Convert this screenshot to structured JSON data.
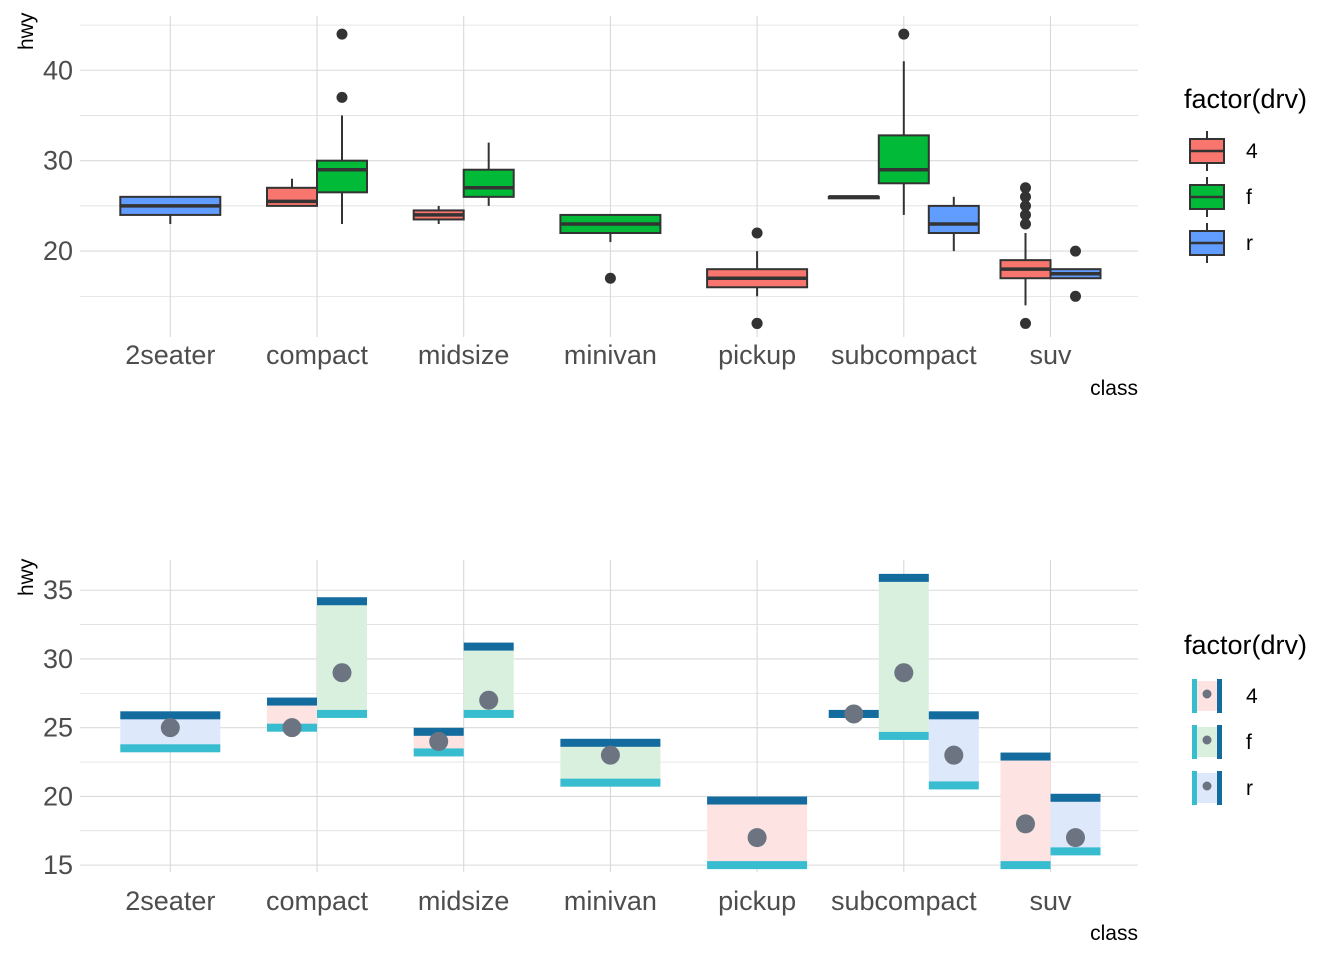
{
  "colors": {
    "4": "#F8766D",
    "f": "#00BA38",
    "r": "#619CFF",
    "outline": "#333333",
    "outlier": "#333333",
    "grid": "#d9d9d9",
    "bar_top": "#136B9E",
    "bar_bottom": "#37BCD0",
    "point": "#6B7480",
    "ribbon_4": "#FDE3E1",
    "ribbon_f": "#D8F0DD",
    "ribbon_r": "#DEE8FB"
  },
  "chart_data": [
    {
      "type": "boxplot",
      "title": "",
      "xlabel": "class",
      "ylabel": "hwy",
      "categories": [
        "2seater",
        "compact",
        "midsize",
        "minivan",
        "pickup",
        "subcompact",
        "suv"
      ],
      "ylim": [
        10.5,
        46
      ],
      "yticks": [
        20,
        30,
        40
      ],
      "ytick_labels": [
        "20",
        "30",
        "40"
      ],
      "legend": {
        "title": "factor(drv)",
        "entries": [
          "4",
          "f",
          "r"
        ],
        "position": "right"
      },
      "series": [
        {
          "category": "2seater",
          "drv": "r",
          "whisker_low": 23,
          "q1": 24,
          "median": 25,
          "q3": 26,
          "whisker_high": 26,
          "outliers": []
        },
        {
          "category": "compact",
          "drv": "4",
          "whisker_low": 25,
          "q1": 25,
          "median": 25.5,
          "q3": 27,
          "whisker_high": 28,
          "outliers": []
        },
        {
          "category": "compact",
          "drv": "f",
          "whisker_low": 23,
          "q1": 26.5,
          "median": 29,
          "q3": 30,
          "whisker_high": 35,
          "outliers": [
            37,
            44
          ]
        },
        {
          "category": "midsize",
          "drv": "4",
          "whisker_low": 23,
          "q1": 23.5,
          "median": 24,
          "q3": 24.5,
          "whisker_high": 25,
          "outliers": []
        },
        {
          "category": "midsize",
          "drv": "f",
          "whisker_low": 25,
          "q1": 26,
          "median": 27,
          "q3": 29,
          "whisker_high": 32,
          "outliers": []
        },
        {
          "category": "minivan",
          "drv": "f",
          "whisker_low": 21,
          "q1": 22,
          "median": 23,
          "q3": 24,
          "whisker_high": 24,
          "outliers": [
            17
          ]
        },
        {
          "category": "pickup",
          "drv": "4",
          "whisker_low": 15,
          "q1": 16,
          "median": 17,
          "q3": 18,
          "whisker_high": 20,
          "outliers": [
            12,
            12,
            22
          ]
        },
        {
          "category": "subcompact",
          "drv": "4",
          "whisker_low": 26,
          "q1": 26,
          "median": 26,
          "q3": 26,
          "whisker_high": 26,
          "outliers": []
        },
        {
          "category": "subcompact",
          "drv": "f",
          "whisker_low": 24,
          "q1": 27.5,
          "median": 29,
          "q3": 32.8,
          "whisker_high": 41,
          "outliers": [
            44
          ]
        },
        {
          "category": "subcompact",
          "drv": "r",
          "whisker_low": 20,
          "q1": 22,
          "median": 23,
          "q3": 25,
          "whisker_high": 26,
          "outliers": []
        },
        {
          "category": "suv",
          "drv": "4",
          "whisker_low": 14,
          "q1": 17,
          "median": 18,
          "q3": 19,
          "whisker_high": 22,
          "outliers": [
            12,
            23,
            24,
            25,
            26,
            27
          ]
        },
        {
          "category": "suv",
          "drv": "r",
          "whisker_low": 17,
          "q1": 17,
          "median": 17.5,
          "q3": 18,
          "whisker_high": 18,
          "outliers": [
            15,
            20
          ]
        }
      ]
    },
    {
      "type": "interval",
      "title": "",
      "xlabel": "class",
      "ylabel": "hwy",
      "categories": [
        "2seater",
        "compact",
        "midsize",
        "minivan",
        "pickup",
        "subcompact",
        "suv"
      ],
      "ylim": [
        14.5,
        37.2
      ],
      "yticks": [
        15,
        20,
        25,
        30,
        35
      ],
      "ytick_labels": [
        "15",
        "20",
        "25",
        "30",
        "35"
      ],
      "legend": {
        "title": "factor(drv)",
        "entries": [
          "4",
          "f",
          "r"
        ],
        "position": "right"
      },
      "series": [
        {
          "category": "2seater",
          "drv": "r",
          "low": 23.5,
          "high": 25.9,
          "point": 25
        },
        {
          "category": "compact",
          "drv": "4",
          "low": 25.0,
          "high": 26.9,
          "point": 25
        },
        {
          "category": "compact",
          "drv": "f",
          "low": 26.0,
          "high": 34.2,
          "point": 29
        },
        {
          "category": "midsize",
          "drv": "4",
          "low": 23.2,
          "high": 24.7,
          "point": 24
        },
        {
          "category": "midsize",
          "drv": "f",
          "low": 26.0,
          "high": 30.9,
          "point": 27
        },
        {
          "category": "minivan",
          "drv": "f",
          "low": 21.0,
          "high": 23.9,
          "point": 23
        },
        {
          "category": "pickup",
          "drv": "4",
          "low": 15.0,
          "high": 19.7,
          "point": 17
        },
        {
          "category": "subcompact",
          "drv": "4",
          "low": 26.0,
          "high": 26.0,
          "point": 26
        },
        {
          "category": "subcompact",
          "drv": "f",
          "low": 24.4,
          "high": 35.9,
          "point": 29
        },
        {
          "category": "subcompact",
          "drv": "r",
          "low": 20.8,
          "high": 25.9,
          "point": 23
        },
        {
          "category": "suv",
          "drv": "4",
          "low": 15.0,
          "high": 22.9,
          "point": 18
        },
        {
          "category": "suv",
          "drv": "r",
          "low": 16.0,
          "high": 19.9,
          "point": 17
        }
      ]
    }
  ]
}
